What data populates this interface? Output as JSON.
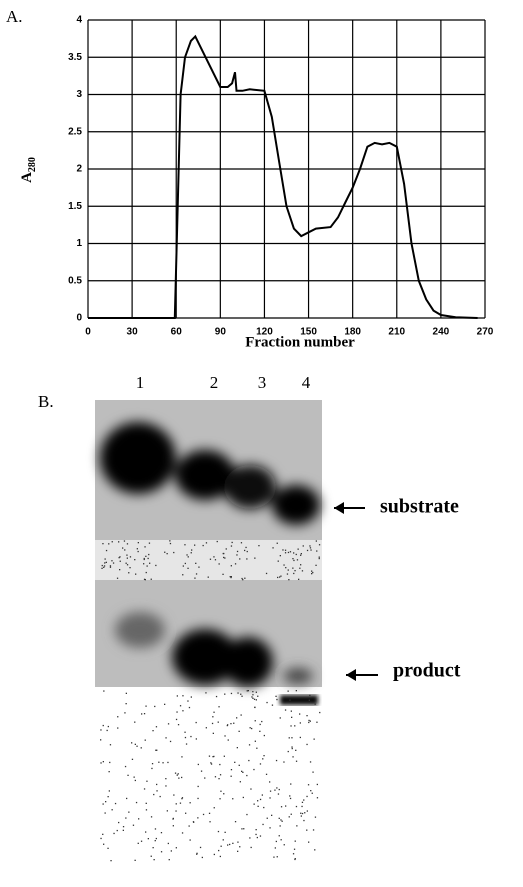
{
  "panel_a_label": "A.",
  "chart_data": {
    "type": "line",
    "x_label": "Fraction number",
    "y_label": {
      "text": "A",
      "subscript": "280"
    },
    "x": [
      0,
      58,
      59,
      61,
      63,
      66,
      70,
      73,
      80,
      90,
      95,
      98,
      100,
      101,
      105,
      110,
      120,
      125,
      130,
      135,
      140,
      145,
      150,
      155,
      165,
      170,
      175,
      180,
      185,
      190,
      195,
      200,
      205,
      210,
      215,
      220,
      225,
      230,
      235,
      240,
      250,
      265
    ],
    "values": [
      0,
      0,
      0,
      1.5,
      3.0,
      3.5,
      3.72,
      3.78,
      3.5,
      3.1,
      3.1,
      3.15,
      3.3,
      3.05,
      3.05,
      3.07,
      3.05,
      2.7,
      2.1,
      1.5,
      1.2,
      1.1,
      1.15,
      1.2,
      1.22,
      1.35,
      1.55,
      1.75,
      2.0,
      2.3,
      2.35,
      2.33,
      2.35,
      2.3,
      1.8,
      1.0,
      0.5,
      0.25,
      0.1,
      0.04,
      0.01,
      0
    ],
    "color": "#000000",
    "xlim": [
      0,
      270
    ],
    "xticks": [
      0,
      30,
      60,
      90,
      120,
      150,
      180,
      210,
      240,
      270
    ],
    "ylim": [
      0,
      4
    ],
    "yticks": [
      0,
      0.5,
      1,
      1.5,
      2,
      2.5,
      3,
      3.5,
      4
    ],
    "grid": true
  },
  "gel": {
    "label": "B.",
    "lanes": [
      "1",
      "2",
      "3",
      "4"
    ],
    "bands": [
      "substrate",
      "product"
    ]
  }
}
